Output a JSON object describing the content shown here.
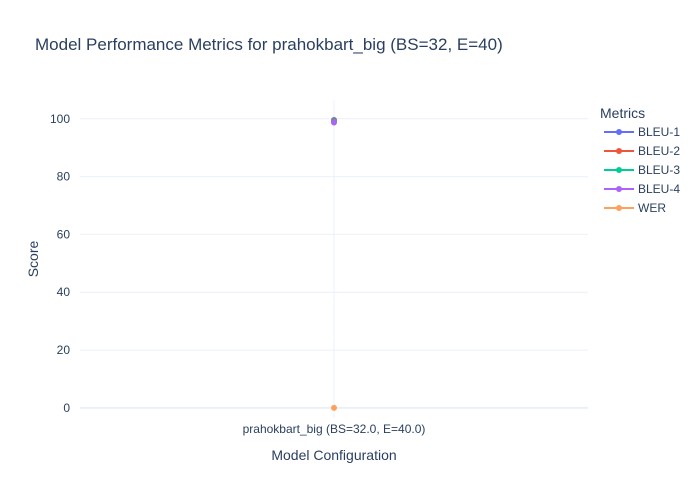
{
  "chart_data": {
    "type": "line",
    "title": "Model Performance Metrics for prahokbart_big (BS=32, E=40)",
    "xlabel": "Model Configuration",
    "ylabel": "Score",
    "categories": [
      "prahokbart_big (BS=32.0, E=40.0)"
    ],
    "ylim": [
      -3.5,
      106.5
    ],
    "yticks": [
      0,
      20,
      40,
      60,
      80,
      100
    ],
    "grid": true,
    "legend_title": "Metrics",
    "legend_position": "top-right",
    "series": [
      {
        "name": "BLEU-1",
        "color": "#636efa",
        "values": [
          99.6
        ]
      },
      {
        "name": "BLEU-2",
        "color": "#ef553b",
        "values": [
          99.3
        ]
      },
      {
        "name": "BLEU-3",
        "color": "#00cc96",
        "values": [
          99.0
        ]
      },
      {
        "name": "BLEU-4",
        "color": "#ab63fa",
        "values": [
          98.7
        ]
      },
      {
        "name": "WER",
        "color": "#ffa15a",
        "values": [
          0
        ]
      }
    ]
  }
}
